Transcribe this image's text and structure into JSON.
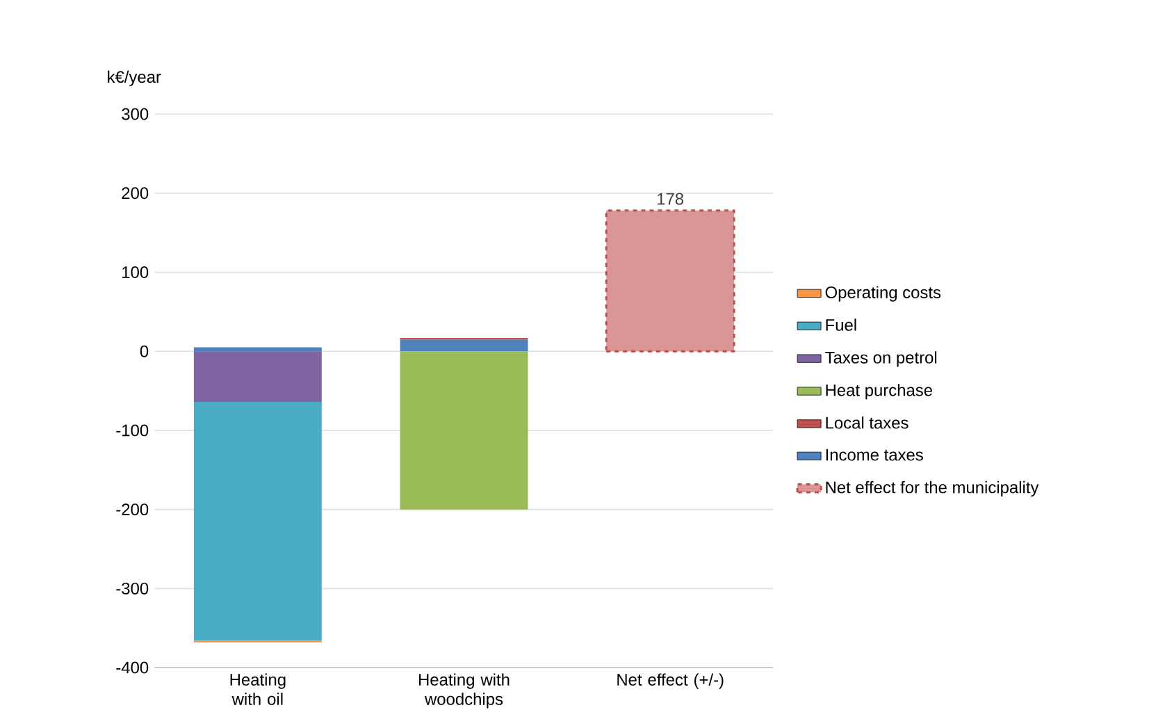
{
  "chart_data": {
    "type": "bar",
    "stacked": true,
    "ylabel": "k€/year",
    "categories": [
      "Heating with oil",
      "Heating with woodchips",
      "Net effect (+/-)"
    ],
    "series": [
      {
        "name": "Net effect for the municipality",
        "color": "#d99694",
        "values": [
          null,
          null,
          178
        ],
        "line_style": "dashed",
        "value_labels": [
          null,
          null,
          "178"
        ]
      },
      {
        "name": "Income taxes",
        "color": "#4f81bd",
        "values": [
          5,
          15,
          null
        ]
      },
      {
        "name": "Local taxes",
        "color": "#c0504d",
        "values": [
          null,
          2,
          null
        ]
      },
      {
        "name": "Heat purchase",
        "color": "#9bbb59",
        "values": [
          null,
          -200,
          null
        ]
      },
      {
        "name": "Taxes on petrol",
        "color": "#8064a2",
        "values": [
          -64,
          null,
          null
        ]
      },
      {
        "name": "Fuel",
        "color": "#4bacc6",
        "values": [
          -302,
          null,
          null
        ]
      },
      {
        "name": "Operating costs",
        "color": "#f79646",
        "values": [
          -2,
          null,
          null
        ]
      }
    ],
    "ylim": [
      -400,
      300
    ],
    "yticks": [
      -400,
      -300,
      -200,
      -100,
      0,
      100,
      200,
      300
    ],
    "grid": "y",
    "legend": "right"
  }
}
